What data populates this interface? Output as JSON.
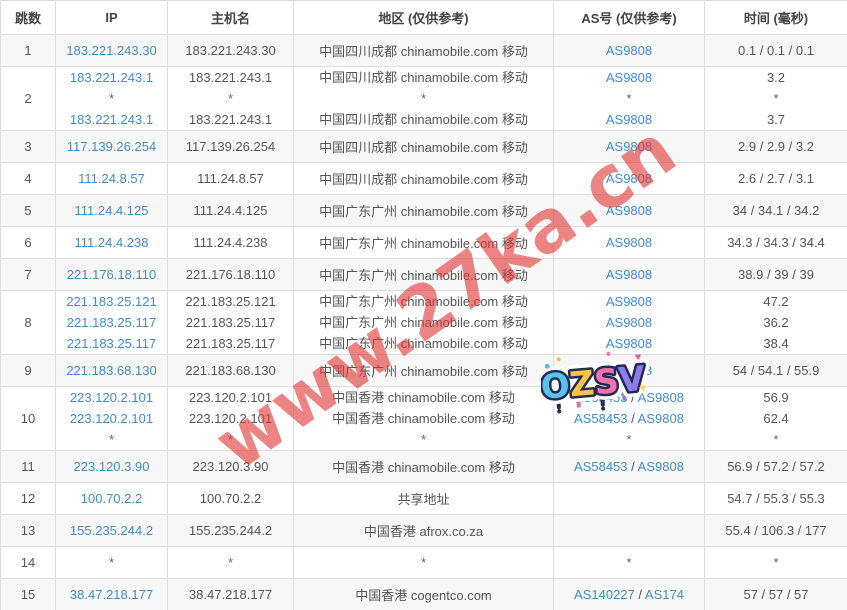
{
  "colors": {
    "link": "#428bca",
    "text": "#555555",
    "header_text": "#444444",
    "border": "#dddddd",
    "stripe": "#f7f7f7",
    "watermark": "rgba(226,57,57,0.62)"
  },
  "watermark": {
    "text": "www.27ka.cn"
  },
  "sticker": {
    "text": "OZSV",
    "outline": "#232b55",
    "letters": [
      {
        "ch": "O",
        "color": "#56c3ea"
      },
      {
        "ch": "Z",
        "color": "#f9c440"
      },
      {
        "ch": "S",
        "color": "#f472ae"
      },
      {
        "ch": "V",
        "color": "#8f7ce8"
      }
    ]
  },
  "table": {
    "headers": [
      {
        "key": "hop",
        "label": "跳数"
      },
      {
        "key": "ip",
        "label": "IP"
      },
      {
        "key": "host",
        "label": "主机名"
      },
      {
        "key": "region",
        "label": "地区 (仅供参考)"
      },
      {
        "key": "as",
        "label": "AS号 (仅供参考)"
      },
      {
        "key": "time",
        "label": "时间 (毫秒)"
      }
    ],
    "rows": [
      {
        "hop": "1",
        "lines": [
          {
            "ip": "183.221.243.30",
            "host": "183.221.243.30",
            "region": "中国四川成都 chinamobile.com 移动",
            "as": [
              "AS9808"
            ],
            "time": "0.1 / 0.1 / 0.1"
          }
        ]
      },
      {
        "hop": "2",
        "lines": [
          {
            "ip": "183.221.243.1",
            "host": "183.221.243.1",
            "region": "中国四川成都 chinamobile.com 移动",
            "as": [
              "AS9808"
            ],
            "time": "3.2"
          },
          {
            "ip": "*",
            "host": "*",
            "region": "*",
            "as": [
              "*"
            ],
            "time": "*"
          },
          {
            "ip": "183.221.243.1",
            "host": "183.221.243.1",
            "region": "中国四川成都 chinamobile.com 移动",
            "as": [
              "AS9808"
            ],
            "time": "3.7"
          }
        ]
      },
      {
        "hop": "3",
        "lines": [
          {
            "ip": "117.139.26.254",
            "host": "117.139.26.254",
            "region": "中国四川成都 chinamobile.com 移动",
            "as": [
              "AS9808"
            ],
            "time": "2.9 / 2.9 / 3.2"
          }
        ]
      },
      {
        "hop": "4",
        "lines": [
          {
            "ip": "111.24.8.57",
            "host": "111.24.8.57",
            "region": "中国四川成都 chinamobile.com 移动",
            "as": [
              "AS9808"
            ],
            "time": "2.6 / 2.7 / 3.1"
          }
        ]
      },
      {
        "hop": "5",
        "lines": [
          {
            "ip": "111.24.4.125",
            "host": "111.24.4.125",
            "region": "中国广东广州 chinamobile.com 移动",
            "as": [
              "AS9808"
            ],
            "time": "34 / 34.1 / 34.2"
          }
        ]
      },
      {
        "hop": "6",
        "lines": [
          {
            "ip": "111.24.4.238",
            "host": "111.24.4.238",
            "region": "中国广东广州 chinamobile.com 移动",
            "as": [
              "AS9808"
            ],
            "time": "34.3 / 34.3 / 34.4"
          }
        ]
      },
      {
        "hop": "7",
        "lines": [
          {
            "ip": "221.176.18.110",
            "host": "221.176.18.110",
            "region": "中国广东广州 chinamobile.com 移动",
            "as": [
              "AS9808"
            ],
            "time": "38.9 / 39 / 39"
          }
        ]
      },
      {
        "hop": "8",
        "lines": [
          {
            "ip": "221.183.25.121",
            "host": "221.183.25.121",
            "region": "中国广东广州 chinamobile.com 移动",
            "as": [
              "AS9808"
            ],
            "time": "47.2"
          },
          {
            "ip": "221.183.25.117",
            "host": "221.183.25.117",
            "region": "中国广东广州 chinamobile.com 移动",
            "as": [
              "AS9808"
            ],
            "time": "36.2"
          },
          {
            "ip": "221.183.25.117",
            "host": "221.183.25.117",
            "region": "中国广东广州 chinamobile.com 移动",
            "as": [
              "AS9808"
            ],
            "time": "38.4"
          }
        ]
      },
      {
        "hop": "9",
        "lines": [
          {
            "ip": "221.183.68.130",
            "host": "221.183.68.130",
            "region": "中国广东广州 chinamobile.com 移动",
            "as": [
              "AS9808"
            ],
            "time": "54 / 54.1 / 55.9"
          }
        ]
      },
      {
        "hop": "10",
        "lines": [
          {
            "ip": "223.120.2.101",
            "host": "223.120.2.101",
            "region": "中国香港 chinamobile.com 移动",
            "as": [
              "AS58453",
              "AS9808"
            ],
            "time": "56.9"
          },
          {
            "ip": "223.120.2.101",
            "host": "223.120.2.101",
            "region": "中国香港 chinamobile.com 移动",
            "as": [
              "AS58453",
              "AS9808"
            ],
            "time": "62.4"
          },
          {
            "ip": "*",
            "host": "*",
            "region": "*",
            "as": [
              "*"
            ],
            "time": "*"
          }
        ]
      },
      {
        "hop": "11",
        "lines": [
          {
            "ip": "223.120.3.90",
            "host": "223.120.3.90",
            "region": "中国香港 chinamobile.com 移动",
            "as": [
              "AS58453",
              "AS9808"
            ],
            "time": "56.9 / 57.2 / 57.2"
          }
        ]
      },
      {
        "hop": "12",
        "lines": [
          {
            "ip": "100.70.2.2",
            "host": "100.70.2.2",
            "region": "共享地址",
            "as": [],
            "time": "54.7 / 55.3 / 55.3"
          }
        ]
      },
      {
        "hop": "13",
        "lines": [
          {
            "ip": "155.235.244.2",
            "host": "155.235.244.2",
            "region": "中国香港 afrox.co.za",
            "as": [],
            "time": "55.4 / 106.3 / 177"
          }
        ]
      },
      {
        "hop": "14",
        "lines": [
          {
            "ip": "*",
            "host": "*",
            "region": "*",
            "as": [
              "*"
            ],
            "time": "*"
          }
        ]
      },
      {
        "hop": "15",
        "lines": [
          {
            "ip": "38.47.218.177",
            "host": "38.47.218.177",
            "region": "中国香港 cogentco.com",
            "as": [
              "AS140227",
              "AS174"
            ],
            "time": "57 / 57 / 57"
          }
        ]
      }
    ]
  }
}
